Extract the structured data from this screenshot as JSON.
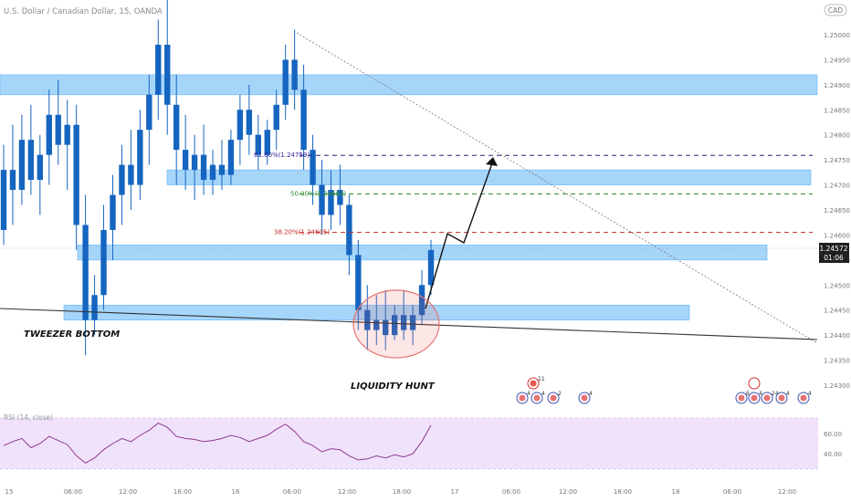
{
  "header": {
    "title": "U.S. Dollar / Canadian Dollar, 15, OANDA",
    "currency": "CAD"
  },
  "colors": {
    "candle": "#1565c0",
    "zone_fill": "#90caf9",
    "zone_stroke": "#64b5f6",
    "rsi_band": "#f0e2fb",
    "rsi_line": "#8e3b8e",
    "fib_618": "#2b1a8f",
    "fib_50": "#2e8b3a",
    "fib_382": "#c62828",
    "price_tag_bg": "#1f1f1f"
  },
  "chart_data": [
    {
      "type": "candlestick",
      "series_ohlc": [
        [
          1.2461,
          1.2478,
          1.2458,
          1.2473
        ],
        [
          1.2473,
          1.2482,
          1.2462,
          1.2469
        ],
        [
          1.2469,
          1.2484,
          1.2466,
          1.2479
        ],
        [
          1.2479,
          1.2486,
          1.2468,
          1.2471
        ],
        [
          1.2471,
          1.248,
          1.2464,
          1.2476
        ],
        [
          1.2476,
          1.2489,
          1.247,
          1.2484
        ],
        [
          1.2484,
          1.2491,
          1.2474,
          1.2478
        ],
        [
          1.2478,
          1.2487,
          1.2469,
          1.2482
        ],
        [
          1.2482,
          1.2486,
          1.2457,
          1.2462
        ],
        [
          1.2462,
          1.2468,
          1.2436,
          1.2443
        ],
        [
          1.2443,
          1.2452,
          1.244,
          1.2448
        ],
        [
          1.2448,
          1.2466,
          1.2445,
          1.2461
        ],
        [
          1.2461,
          1.2472,
          1.2455,
          1.2468
        ],
        [
          1.2468,
          1.2478,
          1.2462,
          1.2474
        ],
        [
          1.2474,
          1.2481,
          1.2465,
          1.247
        ],
        [
          1.247,
          1.2485,
          1.2467,
          1.2481
        ],
        [
          1.2481,
          1.2492,
          1.2474,
          1.2488
        ],
        [
          1.2488,
          1.2503,
          1.2483,
          1.2498
        ],
        [
          1.2498,
          1.2507,
          1.248,
          1.2486
        ],
        [
          1.2486,
          1.2492,
          1.247,
          1.2477
        ],
        [
          1.2477,
          1.2484,
          1.2469,
          1.2473
        ],
        [
          1.2473,
          1.248,
          1.2467,
          1.2476
        ],
        [
          1.2476,
          1.2482,
          1.2468,
          1.2471
        ],
        [
          1.2471,
          1.2477,
          1.2468,
          1.2474
        ],
        [
          1.2474,
          1.2479,
          1.2469,
          1.2472
        ],
        [
          1.2472,
          1.2481,
          1.247,
          1.2479
        ],
        [
          1.2479,
          1.2488,
          1.2474,
          1.2485
        ],
        [
          1.2485,
          1.249,
          1.2476,
          1.248
        ],
        [
          1.248,
          1.2484,
          1.2473,
          1.2476
        ],
        [
          1.2476,
          1.2483,
          1.2474,
          1.2481
        ],
        [
          1.2481,
          1.2489,
          1.2477,
          1.2486
        ],
        [
          1.2486,
          1.2498,
          1.2483,
          1.2495
        ],
        [
          1.2495,
          1.2501,
          1.2485,
          1.2489
        ],
        [
          1.2489,
          1.2494,
          1.2473,
          1.2477
        ],
        [
          1.2477,
          1.248,
          1.2466,
          1.247
        ],
        [
          1.247,
          1.2475,
          1.246,
          1.2464
        ],
        [
          1.2464,
          1.2473,
          1.2461,
          1.2469
        ],
        [
          1.2469,
          1.2474,
          1.2462,
          1.2466
        ],
        [
          1.2466,
          1.2468,
          1.2452,
          1.2456
        ],
        [
          1.2456,
          1.2459,
          1.2441,
          1.2445
        ],
        [
          1.2445,
          1.245,
          1.2437,
          1.2441
        ],
        [
          1.2441,
          1.2448,
          1.2438,
          1.2443
        ],
        [
          1.2443,
          1.2449,
          1.2437,
          1.244
        ],
        [
          1.244,
          1.2446,
          1.2439,
          1.2444
        ],
        [
          1.2444,
          1.2449,
          1.2439,
          1.2441
        ],
        [
          1.2441,
          1.2446,
          1.2438,
          1.2444
        ],
        [
          1.2444,
          1.2453,
          1.2442,
          1.245
        ],
        [
          1.245,
          1.2459,
          1.2448,
          1.2457
        ]
      ],
      "rsi_title": "RSI (14, close)",
      "y_ticks": [
        "1.25000",
        "1.24950",
        "1.24900",
        "1.24850",
        "1.24800",
        "1.24750",
        "1.24700",
        "1.24650",
        "1.24600",
        "1.24550",
        "1.24500",
        "1.24450",
        "1.24400",
        "1.24350",
        "1.24300"
      ],
      "rsi_ticks": [
        "60.00",
        "40.00"
      ],
      "x_ticks": [
        "15",
        "06:00",
        "12:00",
        "18:00",
        "16",
        "06:00",
        "12:00",
        "18:00",
        "17",
        "06:00",
        "12:00",
        "18:00",
        "18",
        "06:00",
        "12:00"
      ],
      "last_price": "1.24572",
      "countdown": "01:06",
      "rsi_values": [
        48,
        52,
        55,
        46,
        50,
        57,
        53,
        49,
        38,
        31,
        36,
        44,
        50,
        55,
        52,
        58,
        63,
        70,
        66,
        57,
        55,
        54,
        52,
        53,
        55,
        58,
        56,
        52,
        55,
        58,
        64,
        69,
        62,
        52,
        48,
        42,
        45,
        44,
        38,
        34,
        35,
        38,
        36,
        39,
        37,
        40,
        52,
        68
      ],
      "fib_levels": [
        {
          "label": "61.80%(1.24759)",
          "value": 1.24759
        },
        {
          "label": "50.00%(1.24682)",
          "value": 1.24682
        },
        {
          "label": "38.20%(1.24605)",
          "value": 1.24605
        }
      ],
      "zones": [
        {
          "from": 1.2488,
          "to": 1.2492
        },
        {
          "from": 1.247,
          "to": 1.2473
        },
        {
          "from": 1.2455,
          "to": 1.2458
        },
        {
          "from": 1.2443,
          "to": 1.2446
        }
      ],
      "annotations": [
        "TWEEZER BOTTOM",
        "LIQUIDITY HUNT"
      ],
      "event_labels": [
        "11",
        "4",
        "4",
        "2",
        "4",
        "4",
        "6",
        "24",
        "4",
        "4"
      ]
    }
  ]
}
